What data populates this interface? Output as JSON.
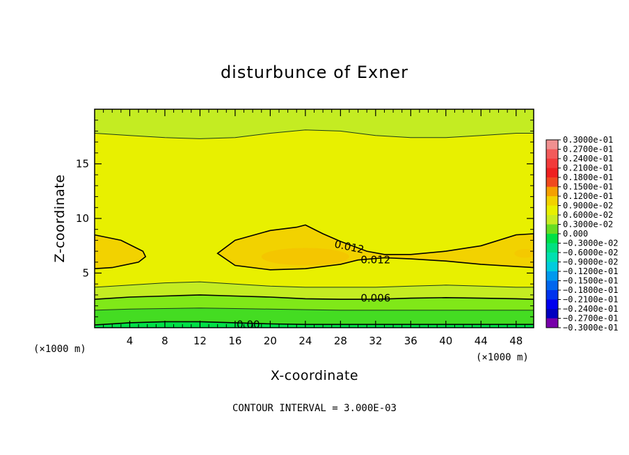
{
  "chart_data": {
    "type": "heatmap",
    "subtype": "filled-contour",
    "title": "disturbunce of Exner",
    "xlabel": "X-coordinate",
    "ylabel": "Z-coordinate",
    "x_unit_left": "(×1000 m)",
    "x_unit_right": "(×1000 m)",
    "footer": "CONTOUR INTERVAL = 3.000E-03",
    "xlim": [
      0,
      50
    ],
    "ylim": [
      0,
      20
    ],
    "x_ticks": [
      4,
      8,
      12,
      16,
      20,
      24,
      28,
      32,
      36,
      40,
      44,
      48
    ],
    "x_tick_labels": [
      "4",
      "8",
      "12",
      "16",
      "20",
      "24",
      "28",
      "32",
      "36",
      "40",
      "44",
      "48"
    ],
    "y_ticks": [
      5,
      10,
      15
    ],
    "y_tick_labels": [
      "5",
      "10",
      "15"
    ],
    "contour_labels": [
      {
        "text": "0.012",
        "x": 29,
        "z": 7.4
      },
      {
        "text": "0.012",
        "x": 32,
        "z": 6.2
      },
      {
        "text": "0.006",
        "x": 32,
        "z": 2.7
      },
      {
        "text": "0.00",
        "x": 17.5,
        "z": 0.3
      }
    ],
    "colorbar": {
      "labels": [
        "0.3000e-01",
        "0.2700e-01",
        "0.2400e-01",
        "0.2100e-01",
        "0.1800e-01",
        "0.1500e-01",
        "0.1200e-01",
        "0.9000e-02",
        "0.6000e-02",
        "0.3000e-02",
        "0.000",
        "−0.3000e-02",
        "−0.6000e-02",
        "−0.9000e-02",
        "−0.1200e-01",
        "−0.1500e-01",
        "−0.1800e-01",
        "−0.2100e-01",
        "−0.2400e-01",
        "−0.2700e-01",
        "−0.3000e-01"
      ],
      "colors": [
        "#f09090",
        "#f25a5a",
        "#f23a3a",
        "#ee2020",
        "#f04a1e",
        "#f5a000",
        "#f2d200",
        "#e8f000",
        "#c8ec22",
        "#66dd22",
        "#00e046",
        "#00e080",
        "#00e0b0",
        "#00ccdd",
        "#0099ee",
        "#0066ee",
        "#0033ee",
        "#0000ee",
        "#0000c0",
        "#7700aa"
      ]
    },
    "field_colors": {
      "lt_0": "#00e046",
      "0_003": "#44dc22",
      "003_006": "#80e818",
      "006_009": "#c4ec22",
      "009_012": "#e8f000",
      "012_015": "#f2d200",
      "015_018": "#f5a000"
    },
    "contours": [
      {
        "name": "0.000",
        "level": 0.0,
        "style": "solid",
        "x": [
          0,
          4,
          8,
          12,
          16,
          20,
          24,
          28,
          32,
          36,
          40,
          44,
          48,
          50
        ],
        "z": [
          0.25,
          0.45,
          0.55,
          0.55,
          0.45,
          0.35,
          0.3,
          0.3,
          0.3,
          0.3,
          0.3,
          0.3,
          0.3,
          0.3
        ]
      },
      {
        "name": "0.003",
        "level": 0.003,
        "style": "thin",
        "x": [
          0,
          4,
          8,
          12,
          16,
          20,
          24,
          28,
          32,
          36,
          40,
          44,
          48,
          50
        ],
        "z": [
          1.6,
          1.7,
          1.75,
          1.8,
          1.75,
          1.7,
          1.65,
          1.6,
          1.6,
          1.6,
          1.6,
          1.6,
          1.6,
          1.6
        ]
      },
      {
        "name": "0.006",
        "level": 0.006,
        "style": "solid",
        "x": [
          0,
          4,
          8,
          12,
          16,
          20,
          24,
          28,
          32,
          36,
          40,
          44,
          48,
          50
        ],
        "z": [
          2.6,
          2.8,
          2.9,
          3.0,
          2.9,
          2.8,
          2.65,
          2.6,
          2.6,
          2.7,
          2.75,
          2.7,
          2.65,
          2.6
        ]
      },
      {
        "name": "0.009",
        "level": 0.009,
        "style": "thin",
        "x": [
          0,
          4,
          8,
          12,
          16,
          20,
          24,
          28,
          32,
          36,
          40,
          44,
          48,
          50
        ],
        "z": [
          3.7,
          3.9,
          4.1,
          4.2,
          4.0,
          3.8,
          3.7,
          3.7,
          3.7,
          3.8,
          3.9,
          3.8,
          3.7,
          3.7
        ]
      },
      {
        "name": "0.009-top",
        "level": 0.009,
        "style": "thin",
        "x": [
          0,
          4,
          8,
          12,
          16,
          20,
          24,
          28,
          32,
          36,
          40,
          44,
          48,
          50
        ],
        "z": [
          17.8,
          17.6,
          17.4,
          17.3,
          17.4,
          17.8,
          18.1,
          18.0,
          17.6,
          17.4,
          17.4,
          17.6,
          17.8,
          17.8
        ]
      }
    ],
    "closed_contours": [
      {
        "name": "0.012-left",
        "level": 0.012,
        "x": [
          0,
          3,
          5.5,
          5.8,
          5,
          2,
          0
        ],
        "z": [
          8.5,
          8.0,
          7.0,
          6.5,
          6.0,
          5.5,
          5.4
        ]
      },
      {
        "name": "0.012-center",
        "level": 0.012,
        "x": [
          14,
          16,
          20,
          23,
          24,
          26,
          28,
          31,
          33,
          36,
          40,
          44,
          48,
          50,
          50,
          48,
          44,
          40,
          36,
          33,
          30,
          28,
          24,
          20,
          16,
          14
        ],
        "z": [
          6.8,
          8.0,
          8.9,
          9.2,
          9.4,
          8.6,
          7.9,
          7.0,
          6.7,
          6.7,
          7.0,
          7.5,
          8.5,
          8.6,
          5.5,
          5.6,
          5.8,
          6.1,
          6.3,
          6.4,
          6.2,
          5.8,
          5.4,
          5.3,
          5.7,
          6.8
        ]
      }
    ]
  }
}
